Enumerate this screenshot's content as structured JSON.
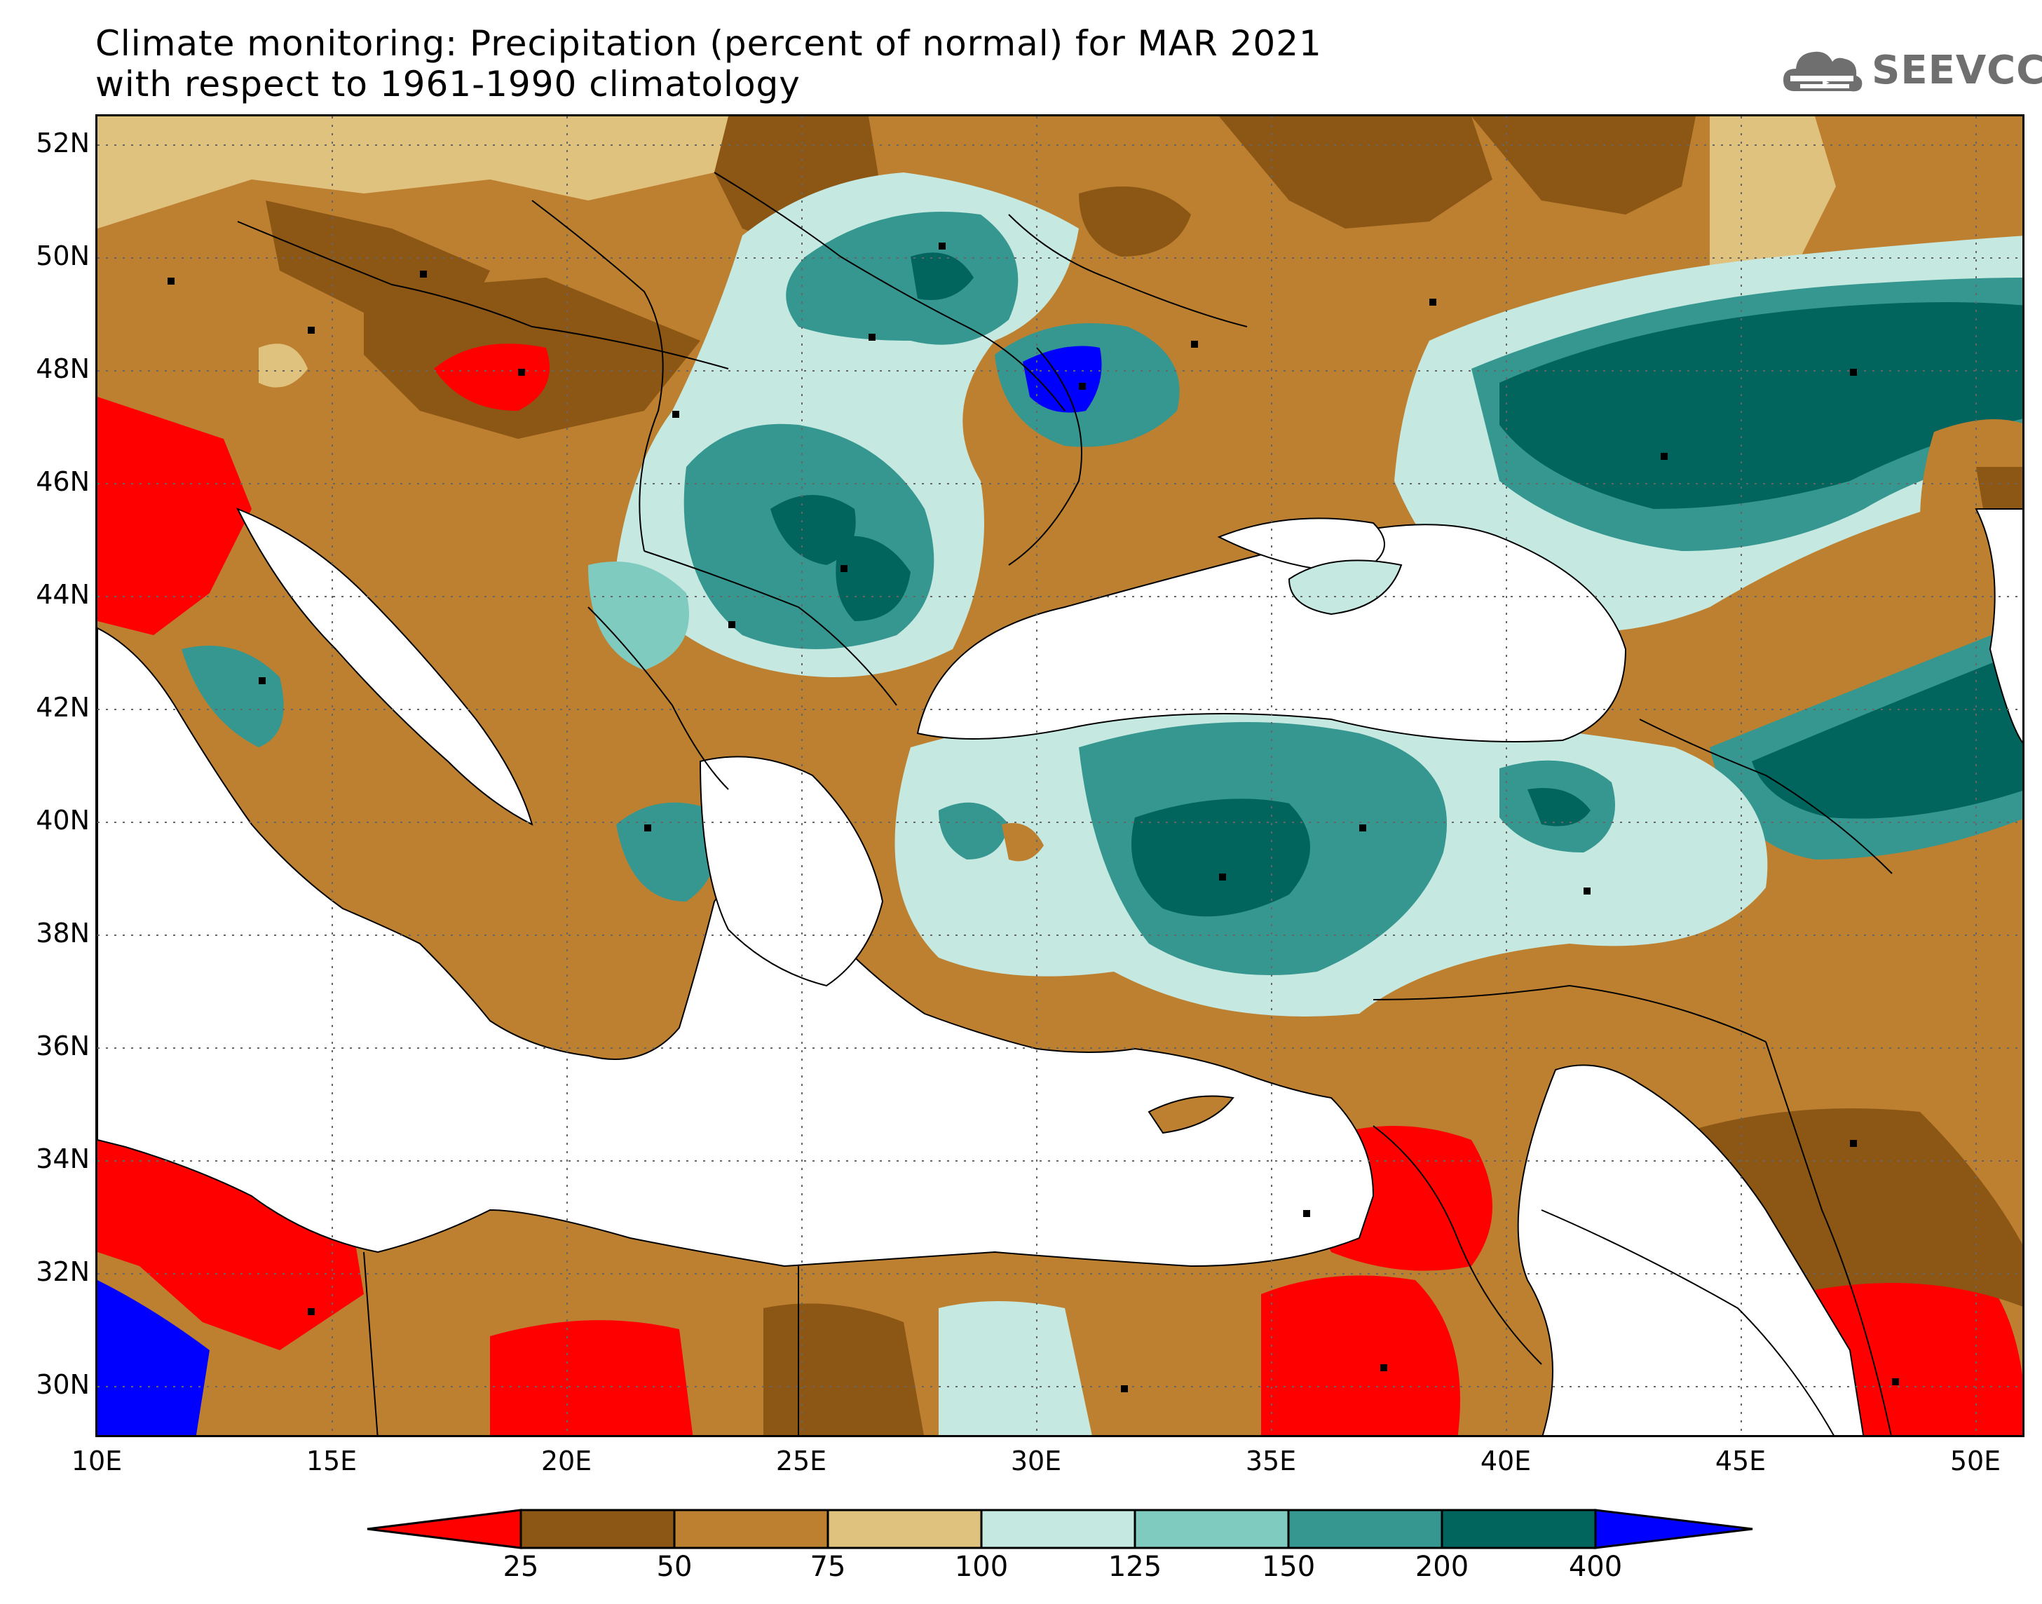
{
  "title": {
    "line1": "Climate monitoring: Precipitation (percent of normal) for MAR 2021",
    "line2": "with respect to 1961-1990 climatology"
  },
  "logo": {
    "text": "SEEVCCC",
    "icon": "cloud-icon",
    "color": "#6f6f6f"
  },
  "axes": {
    "lat_labels": [
      "52N",
      "50N",
      "48N",
      "46N",
      "44N",
      "42N",
      "40N",
      "38N",
      "36N",
      "34N",
      "32N",
      "30N"
    ],
    "lon_labels": [
      "10E",
      "15E",
      "20E",
      "25E",
      "30E",
      "35E",
      "40E",
      "45E",
      "50E"
    ],
    "lat_range": [
      29,
      52.5
    ],
    "lon_range": [
      10,
      51
    ],
    "grid": "dotted"
  },
  "legend": {
    "bin_colors": [
      "#ff0000",
      "#8c5615",
      "#bd8030",
      "#e0c27f",
      "#c5e8e1",
      "#7fcbbf",
      "#35978f",
      "#01655e",
      "#0000ff"
    ],
    "labels": [
      "25",
      "50",
      "75",
      "100",
      "125",
      "150",
      "200",
      "400"
    ]
  }
}
